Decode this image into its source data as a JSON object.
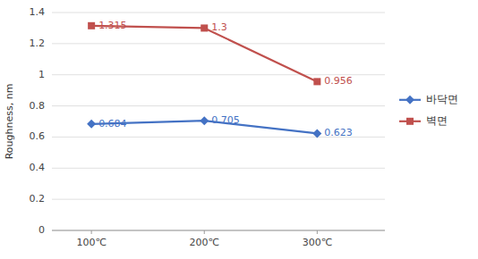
{
  "chart_data": {
    "type": "line",
    "y_label": "Roughness, nm",
    "categories": [
      "100℃",
      "200℃",
      "300℃"
    ],
    "series": [
      {
        "name": "바닥면",
        "color": "#4472C4",
        "marker": "diamond",
        "values": [
          0.684,
          0.705,
          0.623
        ]
      },
      {
        "name": "벽면",
        "color": "#C0504D",
        "marker": "square",
        "values": [
          1.315,
          1.3,
          0.956
        ]
      }
    ],
    "ylim": [
      0,
      1.4
    ],
    "yticks": [
      0,
      0.2,
      0.4,
      0.6,
      0.8,
      1,
      1.2,
      1.4
    ],
    "grid": true,
    "legend": "right",
    "data_labels": true
  }
}
